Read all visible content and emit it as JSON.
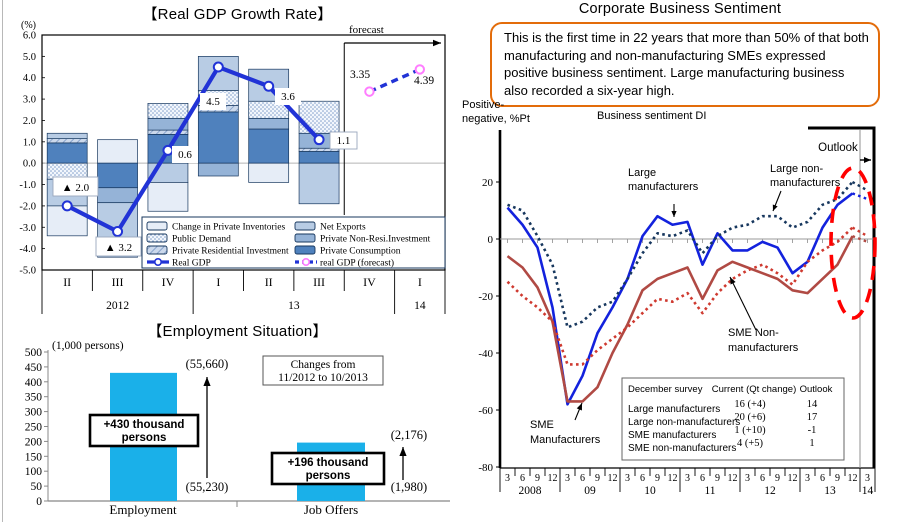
{
  "gdp": {
    "title": "【Real GDP Growth Rate】",
    "unit_label": "(%)",
    "forecast_label": "forecast",
    "y_ticks": [
      "6.0",
      "5.0",
      "4.0",
      "3.0",
      "2.0",
      "1.0",
      "0.0",
      "-1.0",
      "-2.0",
      "-3.0",
      "-4.0",
      "-5.0"
    ],
    "quarters": [
      "II",
      "III",
      "IV",
      "I",
      "II",
      "III",
      "IV",
      "I"
    ],
    "year_groups": [
      [
        "2012",
        3
      ],
      [
        "13",
        4
      ],
      [
        "14",
        1
      ]
    ],
    "legend": [
      {
        "key": "inv",
        "label": "Change in Private Inventories"
      },
      {
        "key": "net",
        "label": "Net Exports"
      },
      {
        "key": "pub",
        "label": "Public Demand"
      },
      {
        "key": "non",
        "label": "Private Non-Resi.Investment"
      },
      {
        "key": "res",
        "label": "Private Residential Investment"
      },
      {
        "key": "con",
        "label": "Private Consumption"
      },
      {
        "key": "line",
        "label": "Real GDP"
      },
      {
        "key": "dash",
        "label": "real GDP (forecast)"
      }
    ]
  },
  "employment": {
    "title": "【Employment Situation】",
    "unit_label": "(1,000 persons)",
    "period_box": [
      "Changes from",
      "11/2012  to 10/2013"
    ],
    "emp_top": "(55,660)",
    "emp_bottom": "(55,230)",
    "job_top": "(2,176)",
    "job_bottom": "(1,980)",
    "emp_change": [
      "+430 thousand",
      "persons"
    ],
    "job_change": [
      "+196 thousand",
      "persons"
    ]
  },
  "sentiment": {
    "title": "Corporate Business Sentiment",
    "callout": "This is the first time in 22 years that more than 50% of that both manufacturing and non-manufacturing SMEs expressed positive business sentiment. Large manufacturing business also recorded a six-year high.",
    "ylabel": "Positive-negative, %Pt",
    "subtitle": "Business sentiment DI",
    "outlook_label": "Outlook",
    "annotations": {
      "large_mfg": [
        "Large",
        "manufacturers"
      ],
      "large_non": [
        "Large non-",
        "manufacturers"
      ],
      "sme_non": [
        "SME Non-",
        "manufacturers"
      ],
      "sme_mfg": [
        "SME",
        "Manufacturers"
      ]
    },
    "table": {
      "header": [
        "December survey",
        "Current (Qt change)",
        "Outlook"
      ],
      "rows": [
        [
          "Large manufacturers",
          "16 (+4)",
          "14"
        ],
        [
          "Large non-manufacturers",
          "20 (+6)",
          "17"
        ],
        [
          "SME manufacturers",
          "1 (+10)",
          "-1"
        ],
        [
          "SME non-manufacturers",
          "4 (+5)",
          "1"
        ]
      ]
    }
  },
  "colors": {
    "con": "#4f81bd",
    "non": "#95b3d7",
    "net": "#b8cce4",
    "inv": "#e6edf7",
    "gdp_line": "#2133d6",
    "forecast_marker": "#ff7dff",
    "seg_border": "#17375e",
    "emp_bar": "#1ab0e9",
    "large_mfg": "#1322dd",
    "large_non": "#17375e",
    "sme_mfg": "#b04a44",
    "sme_non": "#cf3a30",
    "ellipse": "#ff0000",
    "callout_border": "#e36c0a"
  },
  "chart_data": [
    {
      "id": "gdp",
      "type": "bar+line",
      "title": "【Real GDP Growth Rate】",
      "ylabel": "(%)",
      "ylim": [
        -5,
        6
      ],
      "ytick_step": 1,
      "grid": "zero-line-only",
      "categories": [
        "II 2012",
        "III 2012",
        "IV 2012",
        "I 13",
        "II 13",
        "III 13",
        "IV 13",
        "I 14"
      ],
      "stacked_bars": [
        {
          "quarter": "II 2012",
          "segments": [
            [
              "con",
              0.95
            ],
            [
              "res",
              0.2
            ],
            [
              "net",
              0.25
            ],
            [
              "pub",
              -0.75
            ],
            [
              "net",
              -1.25
            ],
            [
              "inv",
              -1.4
            ]
          ]
        },
        {
          "quarter": "III 2012",
          "segments": [
            [
              "inv",
              1.1
            ],
            [
              "con",
              -1.15
            ],
            [
              "non",
              -0.7
            ],
            [
              "net",
              -2.55
            ]
          ]
        },
        {
          "quarter": "IV 2012",
          "segments": [
            [
              "con",
              1.35
            ],
            [
              "res",
              0.2
            ],
            [
              "non",
              0.55
            ],
            [
              "pub",
              0.7
            ],
            [
              "net",
              -0.9
            ],
            [
              "inv",
              -1.35
            ]
          ]
        },
        {
          "quarter": "I 13",
          "segments": [
            [
              "con",
              2.4
            ],
            [
              "res",
              0.3
            ],
            [
              "pub",
              0.7
            ],
            [
              "net",
              1.6
            ],
            [
              "non",
              -0.6
            ]
          ]
        },
        {
          "quarter": "II 13",
          "segments": [
            [
              "con",
              1.6
            ],
            [
              "non",
              0.5
            ],
            [
              "pub",
              0.8
            ],
            [
              "net",
              1.5
            ],
            [
              "inv",
              -0.9
            ]
          ]
        },
        {
          "quarter": "III 13",
          "segments": [
            [
              "con",
              0.55
            ],
            [
              "res",
              0.15
            ],
            [
              "non",
              0.7
            ],
            [
              "pub",
              1.5
            ],
            [
              "net",
              -1.9
            ]
          ]
        }
      ],
      "line": {
        "name": "Real GDP",
        "values": [
          -2.0,
          -3.2,
          0.6,
          4.5,
          3.6,
          1.1
        ],
        "labels": [
          "▲ 2.0",
          "▲ 3.2",
          "0.6",
          "4.5",
          "3.6",
          "1.1"
        ]
      },
      "forecast": {
        "name": "real GDP (forecast)",
        "x_index": [
          6,
          7
        ],
        "values": [
          3.35,
          4.39
        ],
        "labels": [
          "3.35",
          "4.39"
        ]
      }
    },
    {
      "id": "employment",
      "type": "bar",
      "title": "【Employment Situation】",
      "ylabel": "(1,000 persons)",
      "categories": [
        "Employment",
        "Job Offers"
      ],
      "values": [
        430,
        196
      ],
      "ylim": [
        0,
        500
      ],
      "ytick_step": 50,
      "level_labels": {
        "Employment": [
          "(55,230)",
          "(55,660)"
        ],
        "Job Offers": [
          "(1,980)",
          "(2,176)"
        ]
      },
      "changes": {
        "Employment": "+430 thousand persons",
        "Job Offers": "+196 thousand persons"
      },
      "period": "Changes from 11/2012 to 10/2013"
    },
    {
      "id": "sentiment",
      "type": "line",
      "title": "Corporate Business Sentiment",
      "ylabel": "Positive-negative, %Pt",
      "ylim": [
        -80,
        30
      ],
      "yticks": [
        20,
        0,
        -20,
        -40,
        -60,
        -80
      ],
      "x_months": [
        "3",
        "6",
        "9",
        "12",
        "3",
        "6",
        "9",
        "12",
        "3",
        "6",
        "9",
        "12",
        "3",
        "6",
        "9",
        "12",
        "3",
        "6",
        "9",
        "12",
        "3",
        "6",
        "9",
        "12",
        "3"
      ],
      "x_years": [
        [
          "2008",
          4
        ],
        [
          "09",
          4
        ],
        [
          "10",
          4
        ],
        [
          "11",
          4
        ],
        [
          "12",
          4
        ],
        [
          "13",
          4
        ],
        [
          "14",
          1
        ]
      ],
      "outlook_from_index": 24,
      "series": [
        {
          "name": "Large manufacturers",
          "style": "solid",
          "color_key": "large_mfg",
          "values": [
            11,
            5,
            -3,
            -24,
            -58,
            -48,
            -33,
            -24,
            -14,
            1,
            8,
            5,
            6,
            -9,
            2,
            -4,
            -4,
            -1,
            -3,
            -12,
            -8,
            4,
            12,
            16,
            14
          ]
        },
        {
          "name": "Large non-manufacturers",
          "style": "dotted",
          "color_key": "large_non",
          "values": [
            12,
            10,
            1,
            -9,
            -31,
            -29,
            -24,
            -22,
            -14,
            -5,
            2,
            1,
            3,
            -5,
            1,
            4,
            5,
            8,
            8,
            4,
            6,
            12,
            14,
            20,
            17
          ]
        },
        {
          "name": "SME manufacturers",
          "style": "solid",
          "color_key": "sme_mfg",
          "values": [
            -6,
            -10,
            -17,
            -29,
            -57,
            -57,
            -52,
            -40,
            -30,
            -18,
            -14,
            -12,
            -10,
            -21,
            -11,
            -8,
            -10,
            -12,
            -14,
            -18,
            -19,
            -14,
            -9,
            1,
            -1
          ]
        },
        {
          "name": "SME non-manufacturers",
          "style": "dotted",
          "color_key": "sme_non",
          "values": [
            -15,
            -20,
            -24,
            -29,
            -44,
            -44,
            -39,
            -35,
            -31,
            -26,
            -21,
            -22,
            -19,
            -26,
            -19,
            -14,
            -11,
            -9,
            -12,
            -16,
            -8,
            -4,
            -1,
            4,
            1
          ]
        }
      ]
    }
  ]
}
